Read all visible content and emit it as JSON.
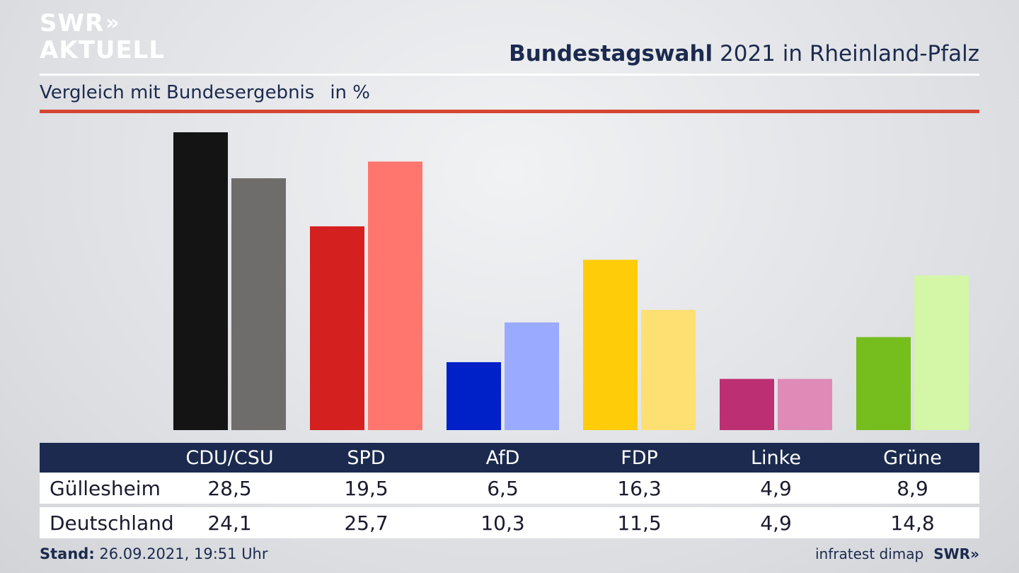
{
  "brand": {
    "line1": "SWR",
    "line2": "AKTUELL",
    "arrows": "»",
    "footer_logo": "SWR»"
  },
  "header": {
    "title_bold": "Bundestagswahl",
    "title_rest": " 2021 in Rheinland-Pfalz"
  },
  "subtitle": {
    "text": "Vergleich mit Bundesergebnis",
    "unit": "in %"
  },
  "footer": {
    "stand_label": "Stand:",
    "stand_value": "26.09.2021, 19:51 Uhr",
    "source": "infratest dimap"
  },
  "chart_data": {
    "type": "bar",
    "categories": [
      "CDU/CSU",
      "SPD",
      "AfD",
      "FDP",
      "Linke",
      "Grüne"
    ],
    "series": [
      {
        "name": "Güllesheim",
        "values": [
          28.5,
          19.5,
          6.5,
          16.3,
          4.9,
          8.9
        ]
      },
      {
        "name": "Deutschland",
        "values": [
          24.1,
          25.7,
          10.3,
          11.5,
          4.9,
          14.8
        ]
      }
    ],
    "colors": {
      "primary": [
        "#141414",
        "#d52020",
        "#0020c8",
        "#ffcc0a",
        "#bc2f72",
        "#76bd1e"
      ],
      "secondary": [
        "#6f6d6b",
        "#ff766e",
        "#9aaaff",
        "#fde071",
        "#e08ab7",
        "#d4f6a7"
      ]
    },
    "ylim": [
      0,
      28.5
    ],
    "grid": false
  }
}
